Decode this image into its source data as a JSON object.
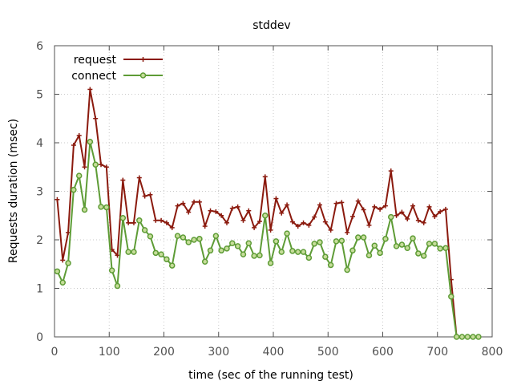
{
  "chart_data": {
    "type": "line",
    "title": "stddev",
    "xlabel": "time (sec of the running test)",
    "ylabel": "Requests duration (msec)",
    "xlim": [
      0,
      800
    ],
    "ylim": [
      0,
      6
    ],
    "xticks": [
      0,
      100,
      200,
      300,
      400,
      500,
      600,
      700,
      800
    ],
    "yticks": [
      0,
      1,
      2,
      3,
      4,
      5,
      6
    ],
    "grid": true,
    "legend_position": "top-left",
    "x": [
      5,
      15,
      25,
      35,
      45,
      55,
      65,
      75,
      85,
      95,
      105,
      115,
      125,
      135,
      145,
      155,
      165,
      175,
      185,
      195,
      205,
      215,
      225,
      235,
      245,
      255,
      265,
      275,
      285,
      295,
      305,
      315,
      325,
      335,
      345,
      355,
      365,
      375,
      385,
      395,
      405,
      415,
      425,
      435,
      445,
      455,
      465,
      475,
      485,
      495,
      505,
      515,
      525,
      535,
      545,
      555,
      565,
      575,
      585,
      595,
      605,
      615,
      625,
      635,
      645,
      655,
      665,
      675,
      685,
      695,
      705,
      715,
      725,
      735,
      745,
      755,
      765,
      775
    ],
    "series": [
      {
        "name": "request",
        "color": "#8b1a0e",
        "marker": "plus",
        "values": [
          2.83,
          1.58,
          2.15,
          3.95,
          4.15,
          3.5,
          5.1,
          4.5,
          3.55,
          3.5,
          1.8,
          1.68,
          3.23,
          2.35,
          2.35,
          3.28,
          2.9,
          2.93,
          2.4,
          2.4,
          2.35,
          2.25,
          2.7,
          2.75,
          2.57,
          2.78,
          2.78,
          2.28,
          2.6,
          2.58,
          2.5,
          2.35,
          2.65,
          2.68,
          2.4,
          2.6,
          2.25,
          2.38,
          3.3,
          2.2,
          2.85,
          2.55,
          2.72,
          2.37,
          2.28,
          2.35,
          2.3,
          2.47,
          2.72,
          2.37,
          2.2,
          2.75,
          2.77,
          2.15,
          2.48,
          2.8,
          2.62,
          2.3,
          2.68,
          2.63,
          2.7,
          3.42,
          2.5,
          2.57,
          2.43,
          2.7,
          2.4,
          2.35,
          2.68,
          2.48,
          2.58,
          2.63,
          1.18,
          0.0,
          0.0,
          0.0,
          0.0,
          0.0
        ]
      },
      {
        "name": "connect",
        "color": "#5e9c36",
        "marker": "circle",
        "values": [
          1.35,
          1.12,
          1.52,
          3.03,
          3.32,
          2.62,
          4.02,
          3.55,
          2.68,
          2.67,
          1.37,
          1.05,
          2.45,
          1.75,
          1.75,
          2.4,
          2.2,
          2.07,
          1.73,
          1.7,
          1.6,
          1.47,
          2.08,
          2.05,
          1.95,
          2.0,
          2.02,
          1.55,
          1.78,
          2.08,
          1.78,
          1.82,
          1.93,
          1.87,
          1.7,
          1.93,
          1.67,
          1.68,
          2.5,
          1.52,
          1.97,
          1.75,
          2.13,
          1.77,
          1.75,
          1.75,
          1.63,
          1.92,
          1.95,
          1.65,
          1.48,
          1.97,
          1.98,
          1.38,
          1.78,
          2.05,
          2.05,
          1.68,
          1.88,
          1.73,
          2.02,
          2.47,
          1.87,
          1.9,
          1.83,
          2.03,
          1.72,
          1.67,
          1.92,
          1.92,
          1.82,
          1.83,
          0.83,
          0.0,
          0.0,
          0.0,
          0.0,
          0.0
        ]
      }
    ]
  }
}
